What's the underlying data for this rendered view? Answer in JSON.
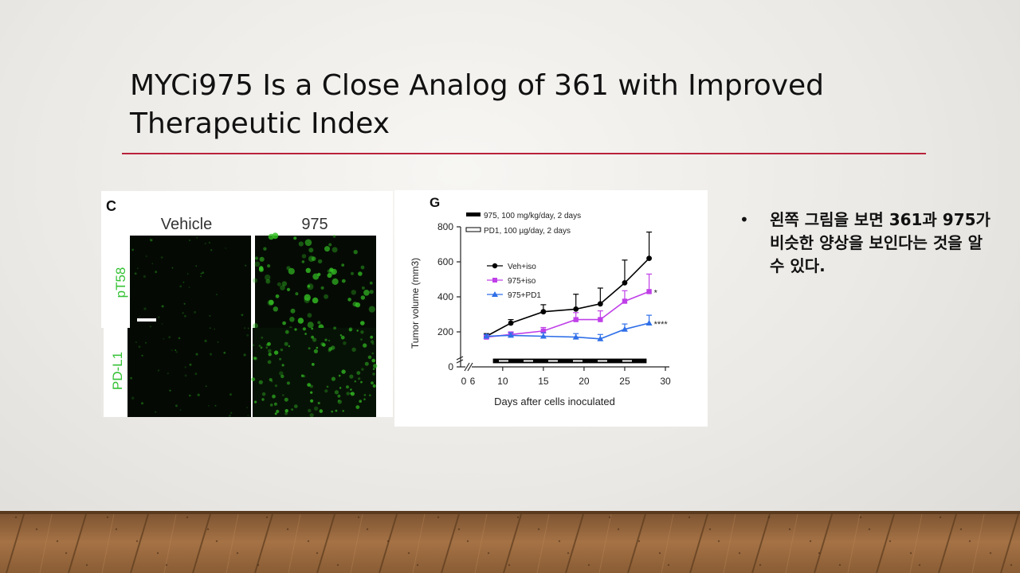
{
  "slide": {
    "title": "MYCi975 Is a Close Analog of 361 with Improved Therapeutic Index",
    "bullets": [
      "왼쪽 그림을 보면 361과 975가 비슷한 양상을 보인다는 것을 알 수 있다."
    ]
  },
  "figure_c": {
    "panel_label": "C",
    "columns": [
      "Vehicle",
      "975"
    ],
    "rows": [
      "pT58",
      "PD-L1"
    ]
  },
  "colors": {
    "title_rule": "#b9223b",
    "micrograph_green": "#34c224",
    "veh_iso": "#000000",
    "975_iso": "#c040e8",
    "975_pd1": "#2f6fe8"
  },
  "chart_data": {
    "type": "line",
    "panel_label": "G",
    "xlabel": "Days after cells inoculated",
    "ylabel": "Tumor volume (mm3)",
    "x_ticks": [
      "0",
      "6",
      "10",
      "15",
      "20",
      "25",
      "30"
    ],
    "y_ticks": [
      "0",
      "200",
      "400",
      "600",
      "800"
    ],
    "xlim": [
      6,
      30
    ],
    "ylim": [
      0,
      800
    ],
    "axis_break": true,
    "treatment_legend": [
      "975, 100 mg/kg/day, 2 days",
      "PD1, 100 µg/day, 2 days"
    ],
    "x": [
      8,
      11,
      15,
      19,
      22,
      25,
      28
    ],
    "series": [
      {
        "name": "Veh+iso",
        "marker": "circle",
        "color": "#000000",
        "values": [
          175,
          250,
          315,
          330,
          360,
          480,
          620
        ],
        "errors": [
          15,
          20,
          40,
          85,
          90,
          130,
          150
        ]
      },
      {
        "name": "975+iso",
        "marker": "square",
        "color": "#c040e8",
        "values": [
          170,
          185,
          205,
          270,
          270,
          375,
          430
        ],
        "errors": [
          10,
          15,
          20,
          40,
          50,
          60,
          100
        ],
        "significance": "*"
      },
      {
        "name": "975+PD1",
        "marker": "triangle",
        "color": "#2f6fe8",
        "values": [
          175,
          180,
          175,
          170,
          160,
          215,
          250
        ],
        "errors": [
          10,
          15,
          20,
          20,
          25,
          30,
          45
        ],
        "significance": "****"
      }
    ]
  }
}
